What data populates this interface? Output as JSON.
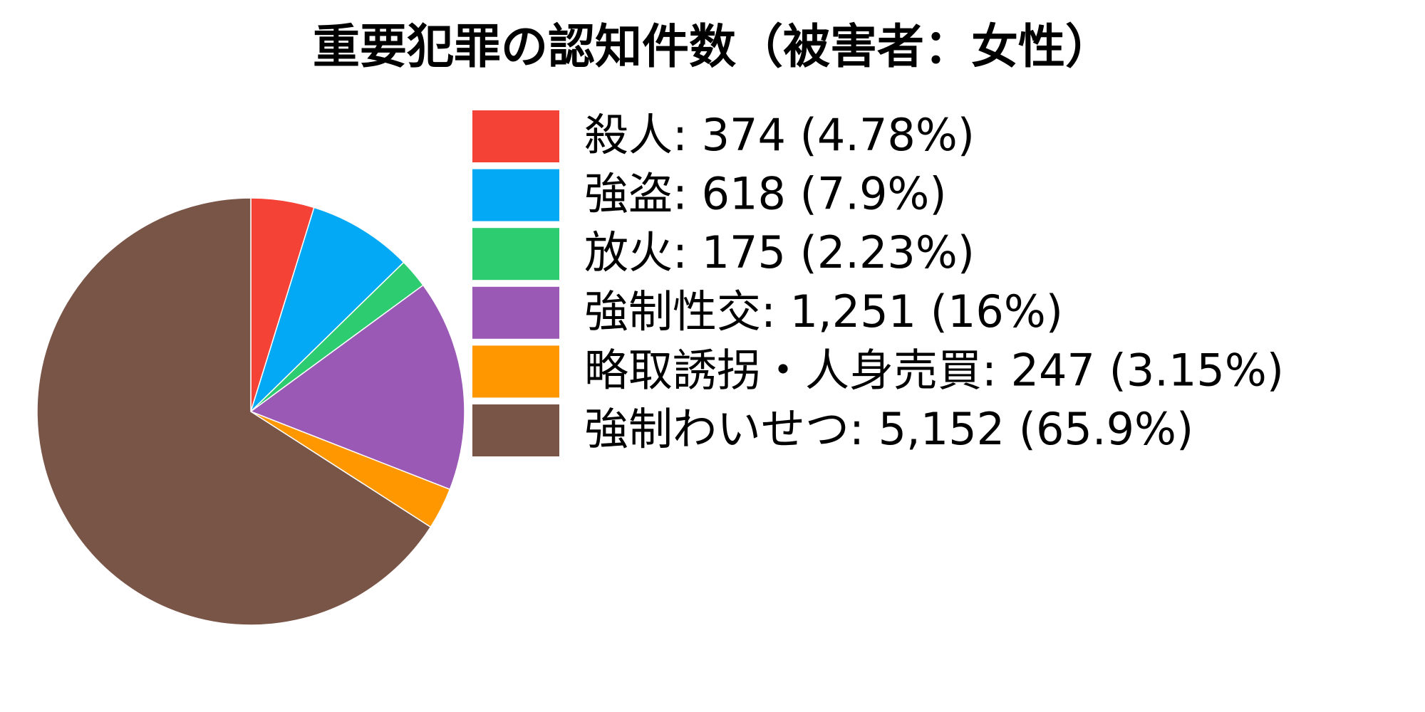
{
  "chart_data": {
    "type": "pie",
    "title": "重要犯罪の認知件数（被害者：女性）",
    "start_angle": "top",
    "direction": "clockwise",
    "legend_position": "right",
    "slices": [
      {
        "name": "殺人",
        "value": 374,
        "value_label": "374",
        "percent_label": "4.78%",
        "legend_text": "殺人: 374 (4.78%)",
        "color": "#F44336"
      },
      {
        "name": "強盗",
        "value": 618,
        "value_label": "618",
        "percent_label": "7.9%",
        "legend_text": "強盗: 618 (7.9%)",
        "color": "#03A9F4"
      },
      {
        "name": "放火",
        "value": 175,
        "value_label": "175",
        "percent_label": "2.23%",
        "legend_text": "放火: 175 (2.23%)",
        "color": "#2ECC71"
      },
      {
        "name": "強制性交",
        "value": 1251,
        "value_label": "1,251",
        "percent_label": "16%",
        "legend_text": "強制性交: 1,251 (16%)",
        "color": "#9B59B6"
      },
      {
        "name": "略取誘拐・人身売買",
        "value": 247,
        "value_label": "247",
        "percent_label": "3.15%",
        "legend_text": "略取誘拐・人身売買: 247 (3.15%)",
        "color": "#FF9800"
      },
      {
        "name": "強制わいせつ",
        "value": 5152,
        "value_label": "5,152",
        "percent_label": "65.9%",
        "legend_text": "強制わいせつ: 5,152 (65.9%)",
        "color": "#795548"
      }
    ]
  }
}
